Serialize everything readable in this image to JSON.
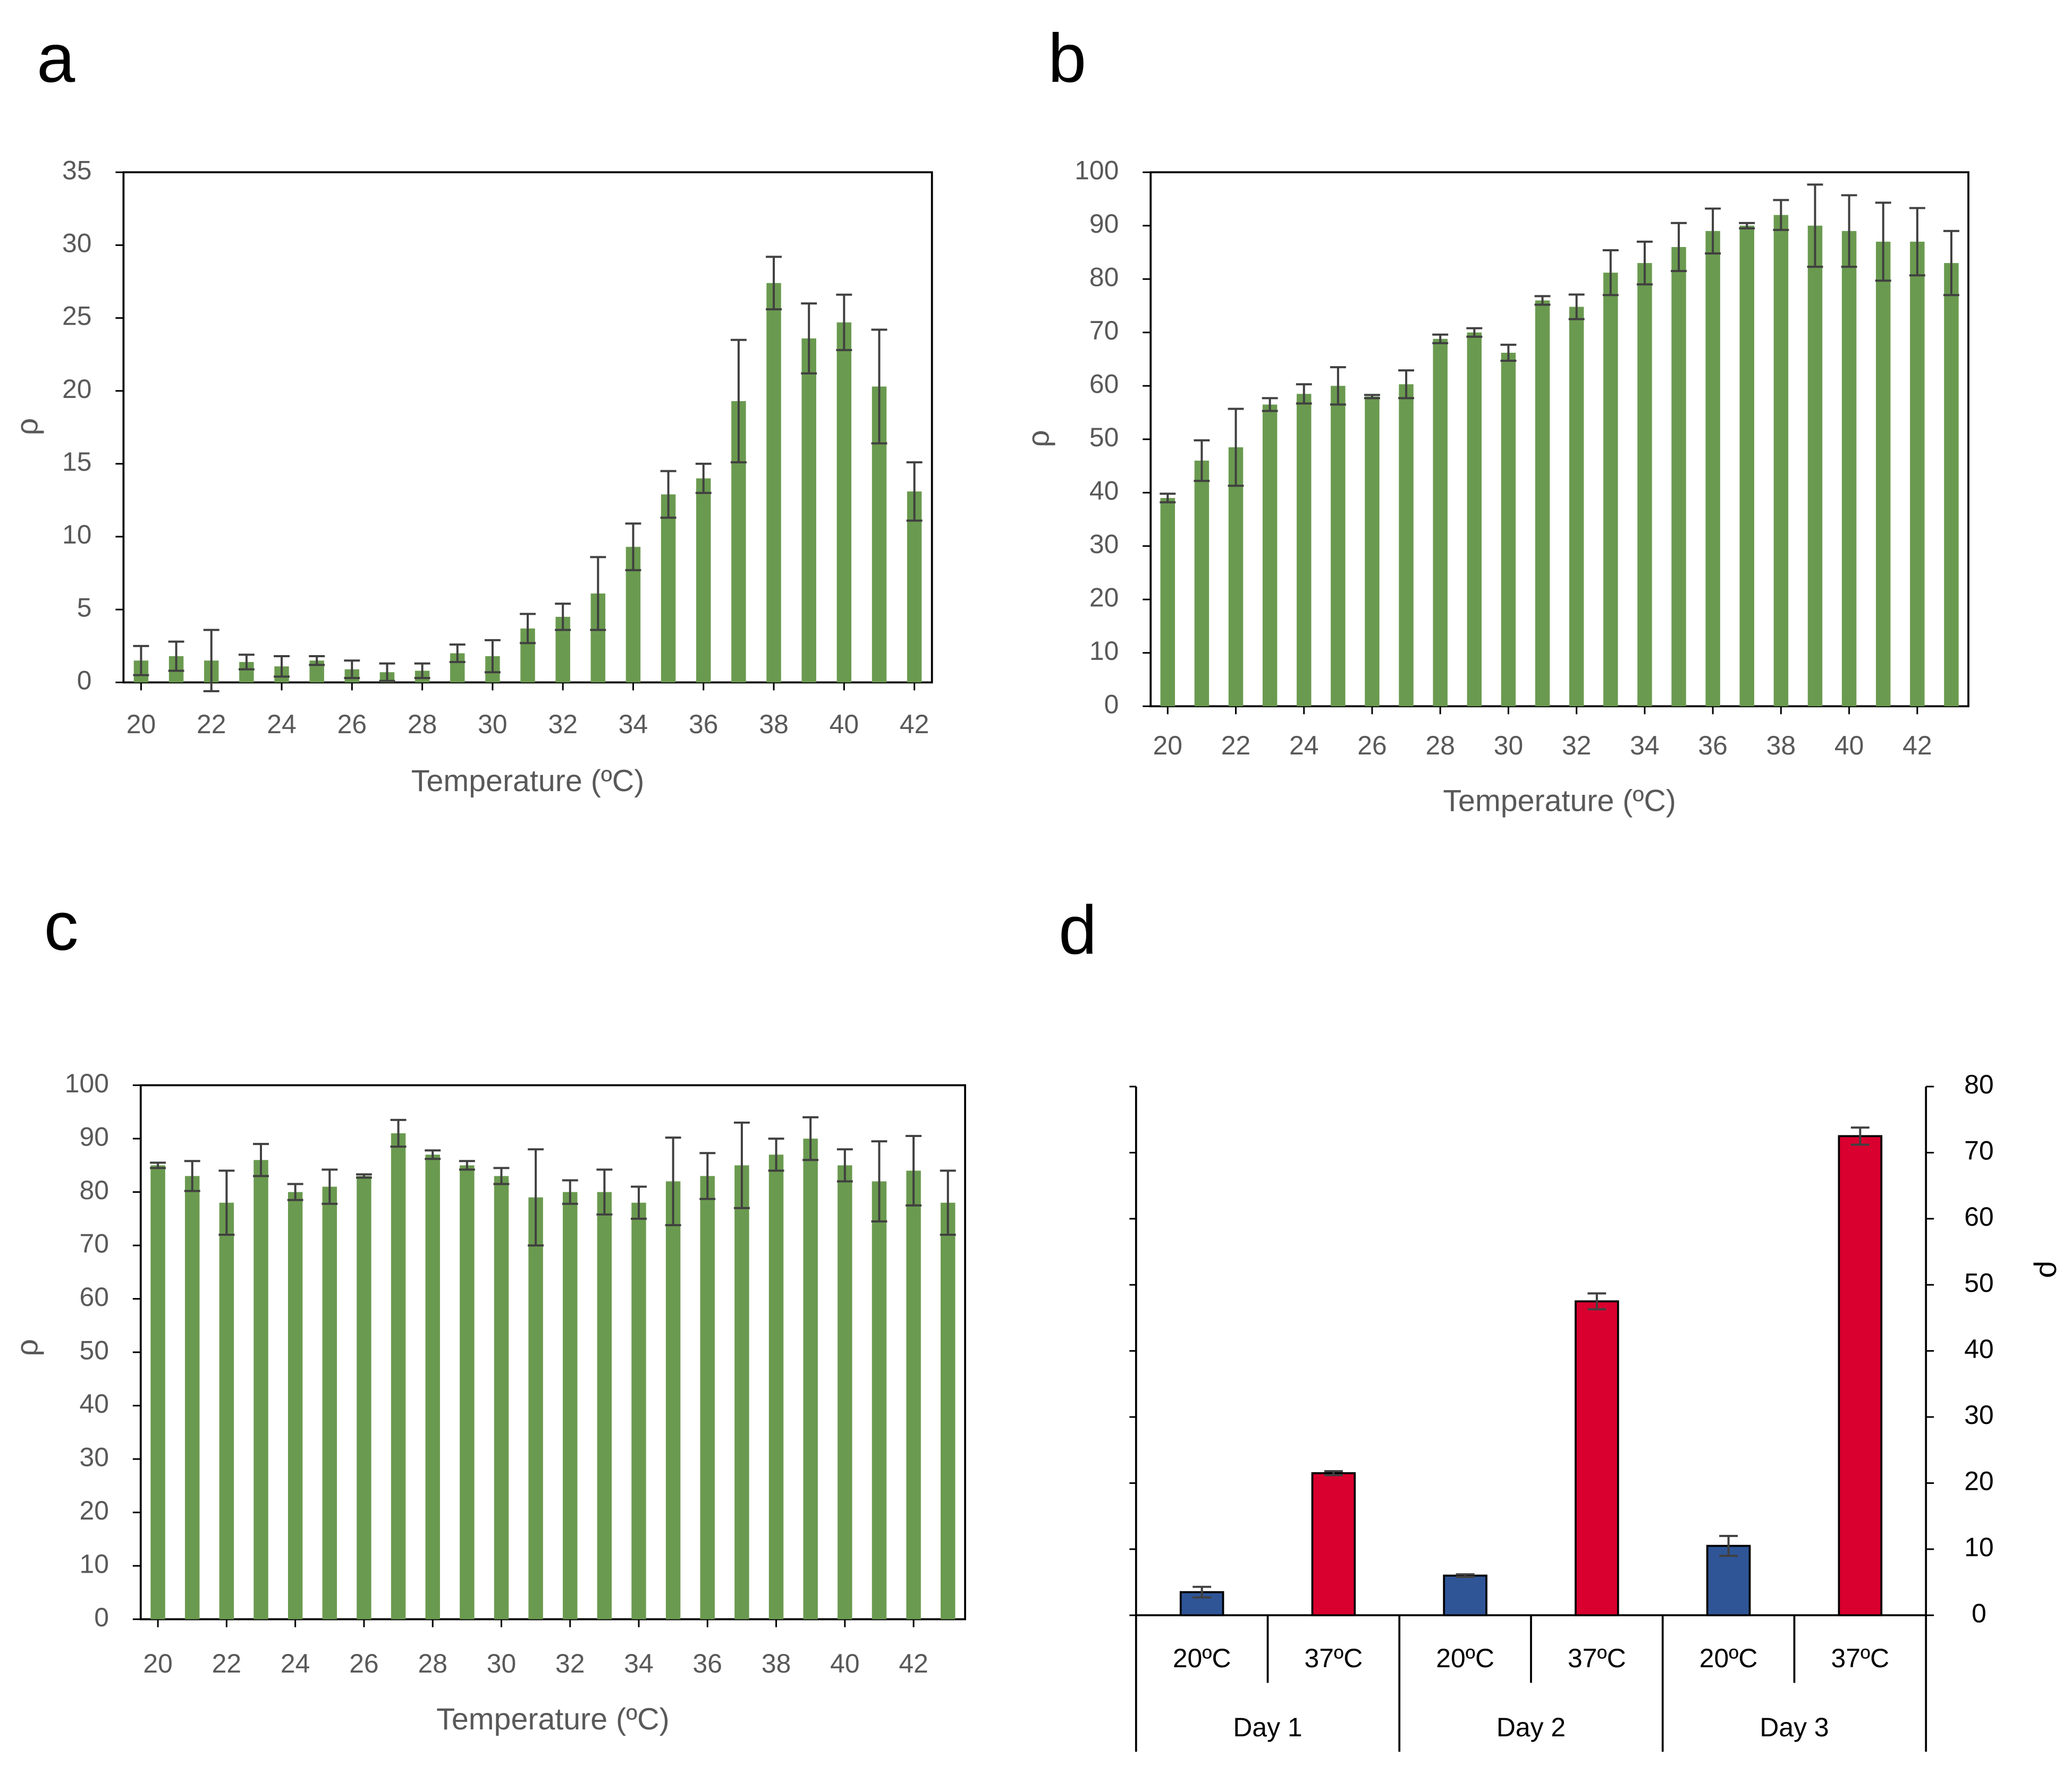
{
  "chart_data": [
    {
      "type": "bar",
      "panel": "a",
      "xlabel": "Temperature (ºC)",
      "ylabel": "ρ",
      "color": "#6a9a4f",
      "x": [
        20,
        21,
        22,
        23,
        24,
        25,
        26,
        27,
        28,
        29,
        30,
        31,
        32,
        33,
        34,
        35,
        36,
        37,
        38,
        39,
        40,
        41,
        42
      ],
      "values": [
        1.5,
        1.8,
        1.5,
        1.4,
        1.1,
        1.5,
        0.9,
        0.7,
        0.8,
        2.0,
        1.8,
        3.7,
        4.5,
        6.1,
        9.3,
        12.9,
        14.0,
        19.3,
        27.4,
        23.6,
        24.7,
        20.3,
        13.1
      ],
      "errors": [
        1.0,
        1.0,
        2.1,
        0.5,
        0.7,
        0.3,
        0.6,
        0.6,
        0.5,
        0.6,
        1.1,
        1.0,
        0.9,
        2.5,
        1.6,
        1.6,
        1.0,
        4.2,
        1.8,
        2.4,
        1.9,
        3.9,
        2.0
      ],
      "xlim": [
        19.5,
        42.5
      ],
      "xticks": [
        20,
        22,
        24,
        26,
        28,
        30,
        32,
        34,
        36,
        38,
        40,
        42
      ],
      "ylim": [
        0,
        35
      ],
      "yticks": [
        0,
        5,
        10,
        15,
        20,
        25,
        30,
        35
      ]
    },
    {
      "type": "bar",
      "panel": "b",
      "xlabel": "Temperature (ºC)",
      "ylabel": "ρ",
      "color": "#6a9a4f",
      "x": [
        20,
        21,
        22,
        23,
        24,
        25,
        26,
        27,
        28,
        29,
        30,
        31,
        32,
        33,
        34,
        35,
        36,
        37,
        38,
        39,
        40,
        41,
        42,
        43
      ],
      "values": [
        39,
        46,
        48.5,
        56.5,
        58.5,
        60,
        58,
        60.3,
        68.8,
        70,
        66.2,
        76,
        74.8,
        81.2,
        83,
        86,
        89,
        90,
        92,
        90,
        89,
        87,
        87,
        83
      ],
      "errors": [
        0.8,
        3.8,
        7.2,
        1.2,
        1.8,
        3.5,
        0.3,
        2.6,
        0.8,
        0.8,
        1.5,
        0.8,
        2.3,
        4.2,
        4,
        4.5,
        4.2,
        0.5,
        2.8,
        7.7,
        6.7,
        7.3,
        6.3,
        6
      ],
      "xlim": [
        19.5,
        43.5
      ],
      "xticks": [
        20,
        22,
        24,
        26,
        28,
        30,
        32,
        34,
        36,
        38,
        40,
        42
      ],
      "ylim": [
        0,
        100
      ],
      "yticks": [
        0,
        10,
        20,
        30,
        40,
        50,
        60,
        70,
        80,
        90,
        100
      ]
    },
    {
      "type": "bar",
      "panel": "c",
      "xlabel": "Temperature (ºC)",
      "ylabel": "ρ",
      "color": "#6a9a4f",
      "x": [
        20,
        21,
        22,
        23,
        24,
        25,
        26,
        27,
        28,
        29,
        30,
        31,
        32,
        33,
        34,
        35,
        36,
        37,
        38,
        39,
        40,
        41,
        42,
        43
      ],
      "values": [
        85,
        83,
        78,
        86,
        80,
        81,
        83,
        91,
        87,
        85,
        83,
        79,
        80,
        80,
        78,
        82,
        83,
        85,
        87,
        90,
        85,
        82,
        84,
        78
      ],
      "errors": [
        0.5,
        2.8,
        6,
        3,
        1.5,
        3.2,
        0.3,
        2.5,
        0.8,
        0.8,
        1.5,
        9,
        2.2,
        4.2,
        3,
        8.2,
        4.3,
        8,
        3,
        4,
        3,
        7.5,
        6.5,
        6
      ],
      "xlim": [
        19.5,
        43.5
      ],
      "xticks": [
        20,
        22,
        24,
        26,
        28,
        30,
        32,
        34,
        36,
        38,
        40,
        42
      ],
      "ylim": [
        0,
        100
      ],
      "yticks": [
        0,
        10,
        20,
        30,
        40,
        50,
        60,
        70,
        80,
        90,
        100
      ]
    },
    {
      "type": "grouped_bar",
      "panel": "d",
      "ylabel": "ρ",
      "yaxis_side": "right",
      "categories": [
        "Day 1",
        "Day 2",
        "Day 3"
      ],
      "series": [
        {
          "name": "20ºC",
          "color": "#2f5597",
          "values": [
            3.5,
            6,
            10.5
          ],
          "errors": [
            0.8,
            0.2,
            1.5
          ]
        },
        {
          "name": "37ºC",
          "color": "#d9002f",
          "values": [
            21.5,
            47.5,
            72.5
          ],
          "errors": [
            0.3,
            1.2,
            1.3
          ]
        }
      ],
      "ylim": [
        0,
        80
      ],
      "yticks": [
        0,
        10,
        20,
        30,
        40,
        50,
        60,
        70,
        80
      ]
    }
  ]
}
